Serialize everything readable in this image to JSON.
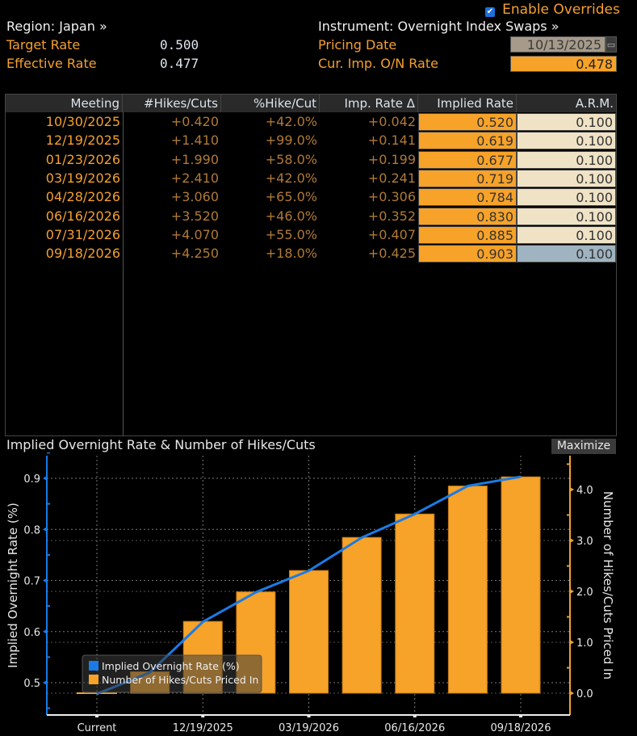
{
  "header": {
    "enable_overrides_label": "Enable Overrides",
    "enable_overrides_checked": true,
    "region_label": "Region: Japan »",
    "instrument_label": "Instrument: Overnight Index Swaps »",
    "target_rate_label": "Target Rate",
    "target_rate_value": "0.500",
    "effective_rate_label": "Effective Rate",
    "effective_rate_value": "0.477",
    "pricing_date_label": "Pricing Date",
    "pricing_date_value": "10/13/2025",
    "cur_imp_label": "Cur. Imp. O/N Rate",
    "cur_imp_value": "0.478"
  },
  "table": {
    "columns": [
      "Meeting",
      "#Hikes/Cuts",
      "%Hike/Cut",
      "Imp. Rate Δ",
      "Implied Rate",
      "A.R.M."
    ],
    "rows": [
      {
        "meeting": "10/30/2025",
        "hikes": "+0.420",
        "pct": "+42.0%",
        "delta": "+0.042",
        "implied": "0.520",
        "arm": "0.100"
      },
      {
        "meeting": "12/19/2025",
        "hikes": "+1.410",
        "pct": "+99.0%",
        "delta": "+0.141",
        "implied": "0.619",
        "arm": "0.100"
      },
      {
        "meeting": "01/23/2026",
        "hikes": "+1.990",
        "pct": "+58.0%",
        "delta": "+0.199",
        "implied": "0.677",
        "arm": "0.100"
      },
      {
        "meeting": "03/19/2026",
        "hikes": "+2.410",
        "pct": "+42.0%",
        "delta": "+0.241",
        "implied": "0.719",
        "arm": "0.100"
      },
      {
        "meeting": "04/28/2026",
        "hikes": "+3.060",
        "pct": "+65.0%",
        "delta": "+0.306",
        "implied": "0.784",
        "arm": "0.100"
      },
      {
        "meeting": "06/16/2026",
        "hikes": "+3.520",
        "pct": "+46.0%",
        "delta": "+0.352",
        "implied": "0.830",
        "arm": "0.100"
      },
      {
        "meeting": "07/31/2026",
        "hikes": "+4.070",
        "pct": "+55.0%",
        "delta": "+0.407",
        "implied": "0.885",
        "arm": "0.100"
      },
      {
        "meeting": "09/18/2026",
        "hikes": "+4.250",
        "pct": "+18.0%",
        "delta": "+0.425",
        "implied": "0.903",
        "arm": "0.100"
      }
    ]
  },
  "chart_panel": {
    "title": "Implied Overnight Rate & Number of Hikes/Cuts",
    "maximize_label": "Maximize"
  },
  "chart_data": {
    "type": "bar",
    "title": "Implied Overnight Rate & Number of Hikes/Cuts",
    "categories": [
      "Current",
      "10/30/2025",
      "12/19/2025",
      "01/23/2026",
      "03/19/2026",
      "04/28/2026",
      "06/16/2026",
      "07/31/2026",
      "09/18/2026"
    ],
    "x_tick_labels": [
      "Current",
      "12/19/2025",
      "03/19/2026",
      "06/16/2026",
      "09/18/2026"
    ],
    "series": [
      {
        "name": "Implied Overnight Rate (%)",
        "type": "line",
        "axis": "left",
        "color": "#1a7be6",
        "values": [
          0.478,
          0.52,
          0.619,
          0.677,
          0.719,
          0.784,
          0.83,
          0.885,
          0.903
        ]
      },
      {
        "name": "Number of Hikes/Cuts Priced In",
        "type": "bar",
        "axis": "right",
        "color": "#f7a228",
        "values": [
          0.0,
          0.42,
          1.41,
          1.99,
          2.41,
          3.06,
          3.52,
          4.07,
          4.25
        ]
      }
    ],
    "ylabel": "Implied Overnight Rate (%)",
    "ylabel_right": "Number of Hikes/Cuts Priced In",
    "ylim": [
      0.44,
      0.95
    ],
    "ylim_right": [
      -0.42,
      4.6
    ],
    "yticks": [
      0.5,
      0.6,
      0.7,
      0.8,
      0.9
    ],
    "yticks_right": [
      0.0,
      1.0,
      2.0,
      3.0,
      4.0
    ],
    "grid": true,
    "legend_position": "bottom-left"
  }
}
